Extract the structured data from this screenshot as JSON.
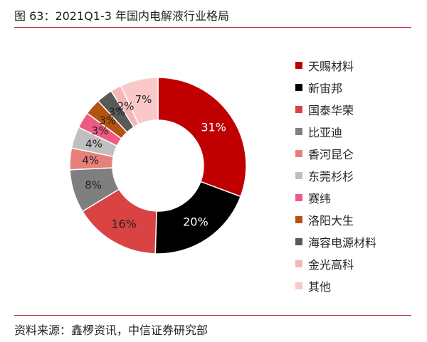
{
  "figure": {
    "title": "图 63：2021Q1-3 年国内电解液行业格局",
    "source": "资料来源：鑫椤资讯，中信证券研究部"
  },
  "chart_data": {
    "type": "pie",
    "donut": true,
    "title": "",
    "unit": "%",
    "legend_position": "right",
    "series": [
      {
        "name": "天赐材料",
        "value": 31,
        "label": "31%",
        "color": "#c00000",
        "label_color": "#ffffff"
      },
      {
        "name": "新宙邦",
        "value": 20,
        "label": "20%",
        "color": "#000000",
        "label_color": "#ffffff"
      },
      {
        "name": "国泰华荣",
        "value": 16,
        "label": "16%",
        "color": "#d94343",
        "label_color": "#222222"
      },
      {
        "name": "比亚迪",
        "value": 8,
        "label": "8%",
        "color": "#7f7f7f",
        "label_color": "#222222"
      },
      {
        "name": "香河昆仑",
        "value": 4,
        "label": "4%",
        "color": "#e8807a",
        "label_color": "#222222"
      },
      {
        "name": "东莞杉杉",
        "value": 4,
        "label": "4%",
        "color": "#bfbfbf",
        "label_color": "#222222"
      },
      {
        "name": "赛纬",
        "value": 3,
        "label": "3%",
        "color": "#ee5a82",
        "label_color": "#222222"
      },
      {
        "name": "洛阳大生",
        "value": 3,
        "label": "3%",
        "color": "#b5520f",
        "label_color": "#222222"
      },
      {
        "name": "海容电源材料",
        "value": 3,
        "label": "3%",
        "color": "#595959",
        "label_color": "#222222"
      },
      {
        "name": "金光高科",
        "value": 2,
        "label": "2%",
        "color": "#f4b6b6",
        "label_color": "#222222"
      },
      {
        "name": "其他",
        "value": 7,
        "label": "7%",
        "color": "#f9c9c9",
        "label_color": "#222222"
      }
    ]
  }
}
